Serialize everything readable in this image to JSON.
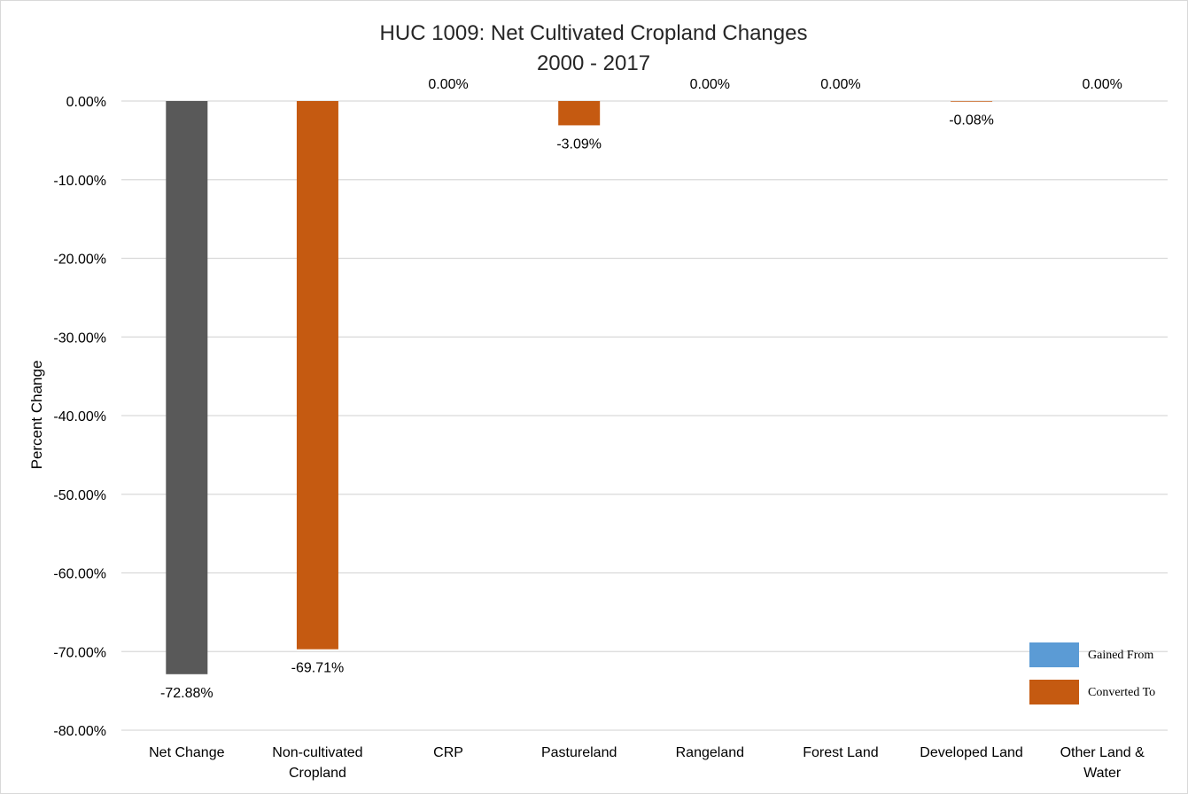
{
  "chart_data": {
    "type": "bar",
    "title_line1": "HUC 1009: Net Cultivated Cropland Changes",
    "title_line2": "2000 - 2017",
    "ylabel": "Percent Change",
    "xlabel": "",
    "ylim": [
      -80,
      0
    ],
    "yticks": [
      0,
      -10,
      -20,
      -30,
      -40,
      -50,
      -60,
      -70,
      -80
    ],
    "ytick_labels": [
      "0.00%",
      "-10.00%",
      "-20.00%",
      "-30.00%",
      "-40.00%",
      "-50.00%",
      "-60.00%",
      "-70.00%",
      "-80.00%"
    ],
    "grid": true,
    "legend_position": "bottom-right",
    "categories": [
      [
        "Net Change"
      ],
      [
        "Non-cultivated",
        "Cropland"
      ],
      [
        "CRP"
      ],
      [
        "Pastureland"
      ],
      [
        "Rangeland"
      ],
      [
        "Forest Land"
      ],
      [
        "Developed Land"
      ],
      [
        "Other Land &",
        "Water"
      ]
    ],
    "values": [
      -72.88,
      -69.71,
      0.0,
      -3.09,
      0.0,
      0.0,
      -0.08,
      0.0
    ],
    "value_labels": [
      "-72.88%",
      "-69.71%",
      "0.00%",
      "-3.09%",
      "0.00%",
      "0.00%",
      "-0.08%",
      "0.00%"
    ],
    "bar_colors": [
      "#595959",
      "#c55a11",
      "#c55a11",
      "#c55a11",
      "#c55a11",
      "#c55a11",
      "#c55a11",
      "#c55a11"
    ],
    "legend": [
      {
        "name": "Gained From",
        "color": "#5b9bd5"
      },
      {
        "name": "Converted To",
        "color": "#c55a11"
      }
    ],
    "gridline_color": "#d9d9d9"
  }
}
